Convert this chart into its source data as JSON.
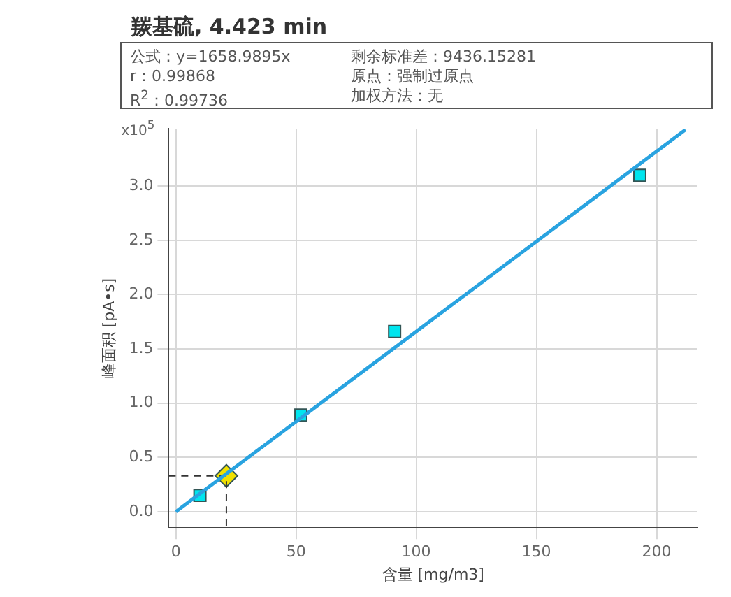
{
  "chart_data": {
    "type": "scatter",
    "title": "羰基硫, 4.423 min",
    "xlabel": "含量 [mg/m3]",
    "ylabel": "峰面积 [pA•s]",
    "annotations": [
      "公式：y=1658.9895x",
      "剩余标准差：9436.15281",
      "r：0.99868",
      "原点：强制过原点",
      "R$^{2}$：0.99736",
      "加权方法：无",
      "x10$^{5}$"
    ],
    "xlim": [
      -3,
      217
    ],
    "xticks": [
      0,
      50,
      100,
      150,
      200
    ],
    "ylim": [
      -0.15,
      3.53
    ],
    "yticks": [
      {
        "value": 0,
        "label": "0.0"
      },
      {
        "value": 0.5,
        "label": "0.5"
      },
      {
        "value": 1,
        "label": "1.0"
      },
      {
        "value": 1.5,
        "label": "1.5"
      },
      {
        "value": 2,
        "label": "2.0"
      },
      {
        "value": 2.5,
        "label": "2.5"
      },
      {
        "value": 3,
        "label": "3.0"
      }
    ],
    "grid": true,
    "legend": false,
    "series": [
      {
        "type": "line",
        "color": "#29a3e0",
        "marker": "none",
        "line_style": "solid",
        "x": [
          0,
          212
        ],
        "values": [
          0,
          3.52
        ]
      },
      {
        "type": "line",
        "color": "#333333",
        "marker": "none",
        "line_style": "dashed",
        "x": [
          -3,
          21,
          21
        ],
        "values": [
          0.33,
          0.33,
          -0.15
        ]
      },
      {
        "color": "#00e5ee",
        "marker": "square",
        "x": [
          10,
          52,
          91,
          193
        ],
        "values": [
          0.15,
          0.89,
          1.66,
          3.1
        ]
      },
      {
        "color": "#f0e000",
        "marker": "diamond",
        "x": [
          21
        ],
        "values": [
          0.33
        ]
      }
    ]
  }
}
